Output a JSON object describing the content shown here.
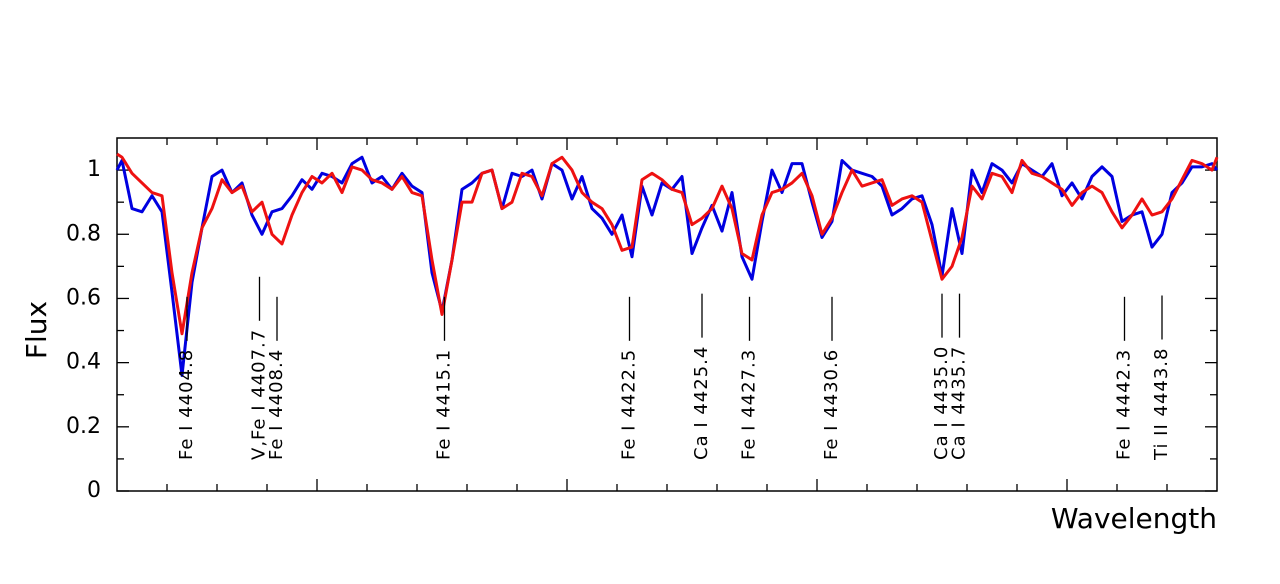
{
  "chart_data": {
    "type": "line",
    "xlabel": "Wavelength",
    "ylabel": "Flux",
    "xlim": [
      4402,
      4446
    ],
    "ylim": [
      0,
      1.1
    ],
    "xticks": [
      4404,
      4406,
      4408,
      4410,
      4412,
      4414,
      4416,
      4418,
      4420,
      4422,
      4424,
      4426,
      4428,
      4430,
      4432,
      4434,
      4436,
      4438,
      4440,
      4442,
      4444
    ],
    "yticks": [
      0,
      0.2,
      0.4,
      0.6,
      0.8,
      1
    ],
    "x": [
      4402.0,
      4402.2,
      4402.6,
      4403.0,
      4403.4,
      4403.8,
      4404.2,
      4404.6,
      4405.0,
      4405.4,
      4405.8,
      4406.2,
      4406.6,
      4407.0,
      4407.4,
      4407.8,
      4408.2,
      4408.6,
      4409.0,
      4409.4,
      4409.8,
      4410.2,
      4410.6,
      4411.0,
      4411.4,
      4411.8,
      4412.2,
      4412.6,
      4413.0,
      4413.4,
      4413.8,
      4414.2,
      4414.6,
      4415.0,
      4415.4,
      4415.8,
      4416.2,
      4416.6,
      4417.0,
      4417.4,
      4417.8,
      4418.2,
      4418.6,
      4419.0,
      4419.4,
      4419.8,
      4420.2,
      4420.6,
      4421.0,
      4421.4,
      4421.8,
      4422.2,
      4422.6,
      4423.0,
      4423.4,
      4423.8,
      4424.2,
      4424.6,
      4425.0,
      4425.4,
      4425.8,
      4426.2,
      4426.6,
      4427.0,
      4427.4,
      4427.8,
      4428.2,
      4428.6,
      4429.0,
      4429.4,
      4429.8,
      4430.2,
      4430.6,
      4431.0,
      4431.4,
      4431.8,
      4432.2,
      4432.6,
      4433.0,
      4433.4,
      4433.8,
      4434.2,
      4434.6,
      4435.0,
      4435.4,
      4435.8,
      4436.2,
      4436.6,
      4437.0,
      4437.4,
      4437.8,
      4438.2,
      4438.6,
      4439.0,
      4439.4,
      4439.8,
      4440.2,
      4440.6,
      4441.0,
      4441.4,
      4441.8,
      4442.2,
      4442.6,
      4443.0,
      4443.4,
      4443.8,
      4444.2,
      4444.6,
      4445.0,
      4445.4,
      4445.8,
      4446.0
    ],
    "series": [
      {
        "color": "#0000e0",
        "values": [
          1.0,
          1.03,
          0.88,
          0.87,
          0.92,
          0.87,
          0.62,
          0.36,
          0.65,
          0.82,
          0.98,
          1.0,
          0.93,
          0.96,
          0.86,
          0.8,
          0.87,
          0.88,
          0.92,
          0.97,
          0.94,
          0.99,
          0.98,
          0.96,
          1.02,
          1.04,
          0.96,
          0.98,
          0.94,
          0.99,
          0.95,
          0.93,
          0.68,
          0.56,
          0.72,
          0.94,
          0.96,
          0.99,
          1.0,
          0.88,
          0.99,
          0.98,
          1.0,
          0.91,
          1.02,
          1.0,
          0.91,
          0.98,
          0.88,
          0.85,
          0.8,
          0.86,
          0.73,
          0.95,
          0.86,
          0.96,
          0.94,
          0.98,
          0.74,
          0.82,
          0.89,
          0.81,
          0.93,
          0.73,
          0.66,
          0.84,
          1.0,
          0.93,
          1.02,
          1.02,
          0.9,
          0.79,
          0.84,
          1.03,
          1.0,
          0.99,
          0.98,
          0.95,
          0.86,
          0.88,
          0.91,
          0.92,
          0.83,
          0.67,
          0.88,
          0.74,
          1.0,
          0.93,
          1.02,
          1.0,
          0.96,
          1.02,
          1.0,
          0.98,
          1.02,
          0.92,
          0.96,
          0.91,
          0.98,
          1.01,
          0.98,
          0.84,
          0.86,
          0.87,
          0.76,
          0.8,
          0.93,
          0.96,
          1.01,
          1.01,
          1.02,
          1.0
        ]
      },
      {
        "color": "#ee1111",
        "values": [
          1.05,
          1.04,
          0.99,
          0.96,
          0.93,
          0.92,
          0.68,
          0.49,
          0.68,
          0.82,
          0.88,
          0.97,
          0.93,
          0.95,
          0.87,
          0.9,
          0.8,
          0.77,
          0.86,
          0.93,
          0.98,
          0.96,
          0.99,
          0.93,
          1.01,
          1.0,
          0.97,
          0.96,
          0.94,
          0.98,
          0.93,
          0.92,
          0.72,
          0.55,
          0.72,
          0.9,
          0.9,
          0.99,
          1.0,
          0.88,
          0.9,
          0.99,
          0.98,
          0.92,
          1.02,
          1.04,
          1.0,
          0.93,
          0.9,
          0.88,
          0.83,
          0.75,
          0.76,
          0.97,
          0.99,
          0.97,
          0.94,
          0.93,
          0.83,
          0.85,
          0.88,
          0.95,
          0.88,
          0.74,
          0.72,
          0.86,
          0.93,
          0.94,
          0.96,
          0.99,
          0.92,
          0.8,
          0.85,
          0.93,
          1.0,
          0.95,
          0.96,
          0.97,
          0.89,
          0.91,
          0.92,
          0.9,
          0.78,
          0.66,
          0.7,
          0.79,
          0.95,
          0.91,
          0.99,
          0.98,
          0.93,
          1.03,
          0.99,
          0.98,
          0.96,
          0.94,
          0.89,
          0.93,
          0.95,
          0.93,
          0.87,
          0.82,
          0.86,
          0.91,
          0.86,
          0.87,
          0.91,
          0.97,
          1.03,
          1.02,
          1.0,
          1.04
        ]
      }
    ],
    "line_ids": [
      {
        "label": "Fe I 4404.8",
        "wavelength": 4404.8
      },
      {
        "label": "V,Fe I 4407.7",
        "wavelength": 4407.7
      },
      {
        "label": "Fe I 4408.4",
        "wavelength": 4408.4
      },
      {
        "label": "Fe I 4415.1",
        "wavelength": 4415.1
      },
      {
        "label": "Fe I 4422.5",
        "wavelength": 4422.5
      },
      {
        "label": "Ca I 4425.4",
        "wavelength": 4425.4
      },
      {
        "label": "Fe I 4427.3",
        "wavelength": 4427.3
      },
      {
        "label": "Fe I 4430.6",
        "wavelength": 4430.6
      },
      {
        "label": "Ca I 4435.0",
        "wavelength": 4435.0
      },
      {
        "label": "Ca I 4435.7",
        "wavelength": 4435.7
      },
      {
        "label": "Fe I 4442.3",
        "wavelength": 4442.3
      },
      {
        "label": "Ti II 4443.8",
        "wavelength": 4443.8
      }
    ]
  }
}
